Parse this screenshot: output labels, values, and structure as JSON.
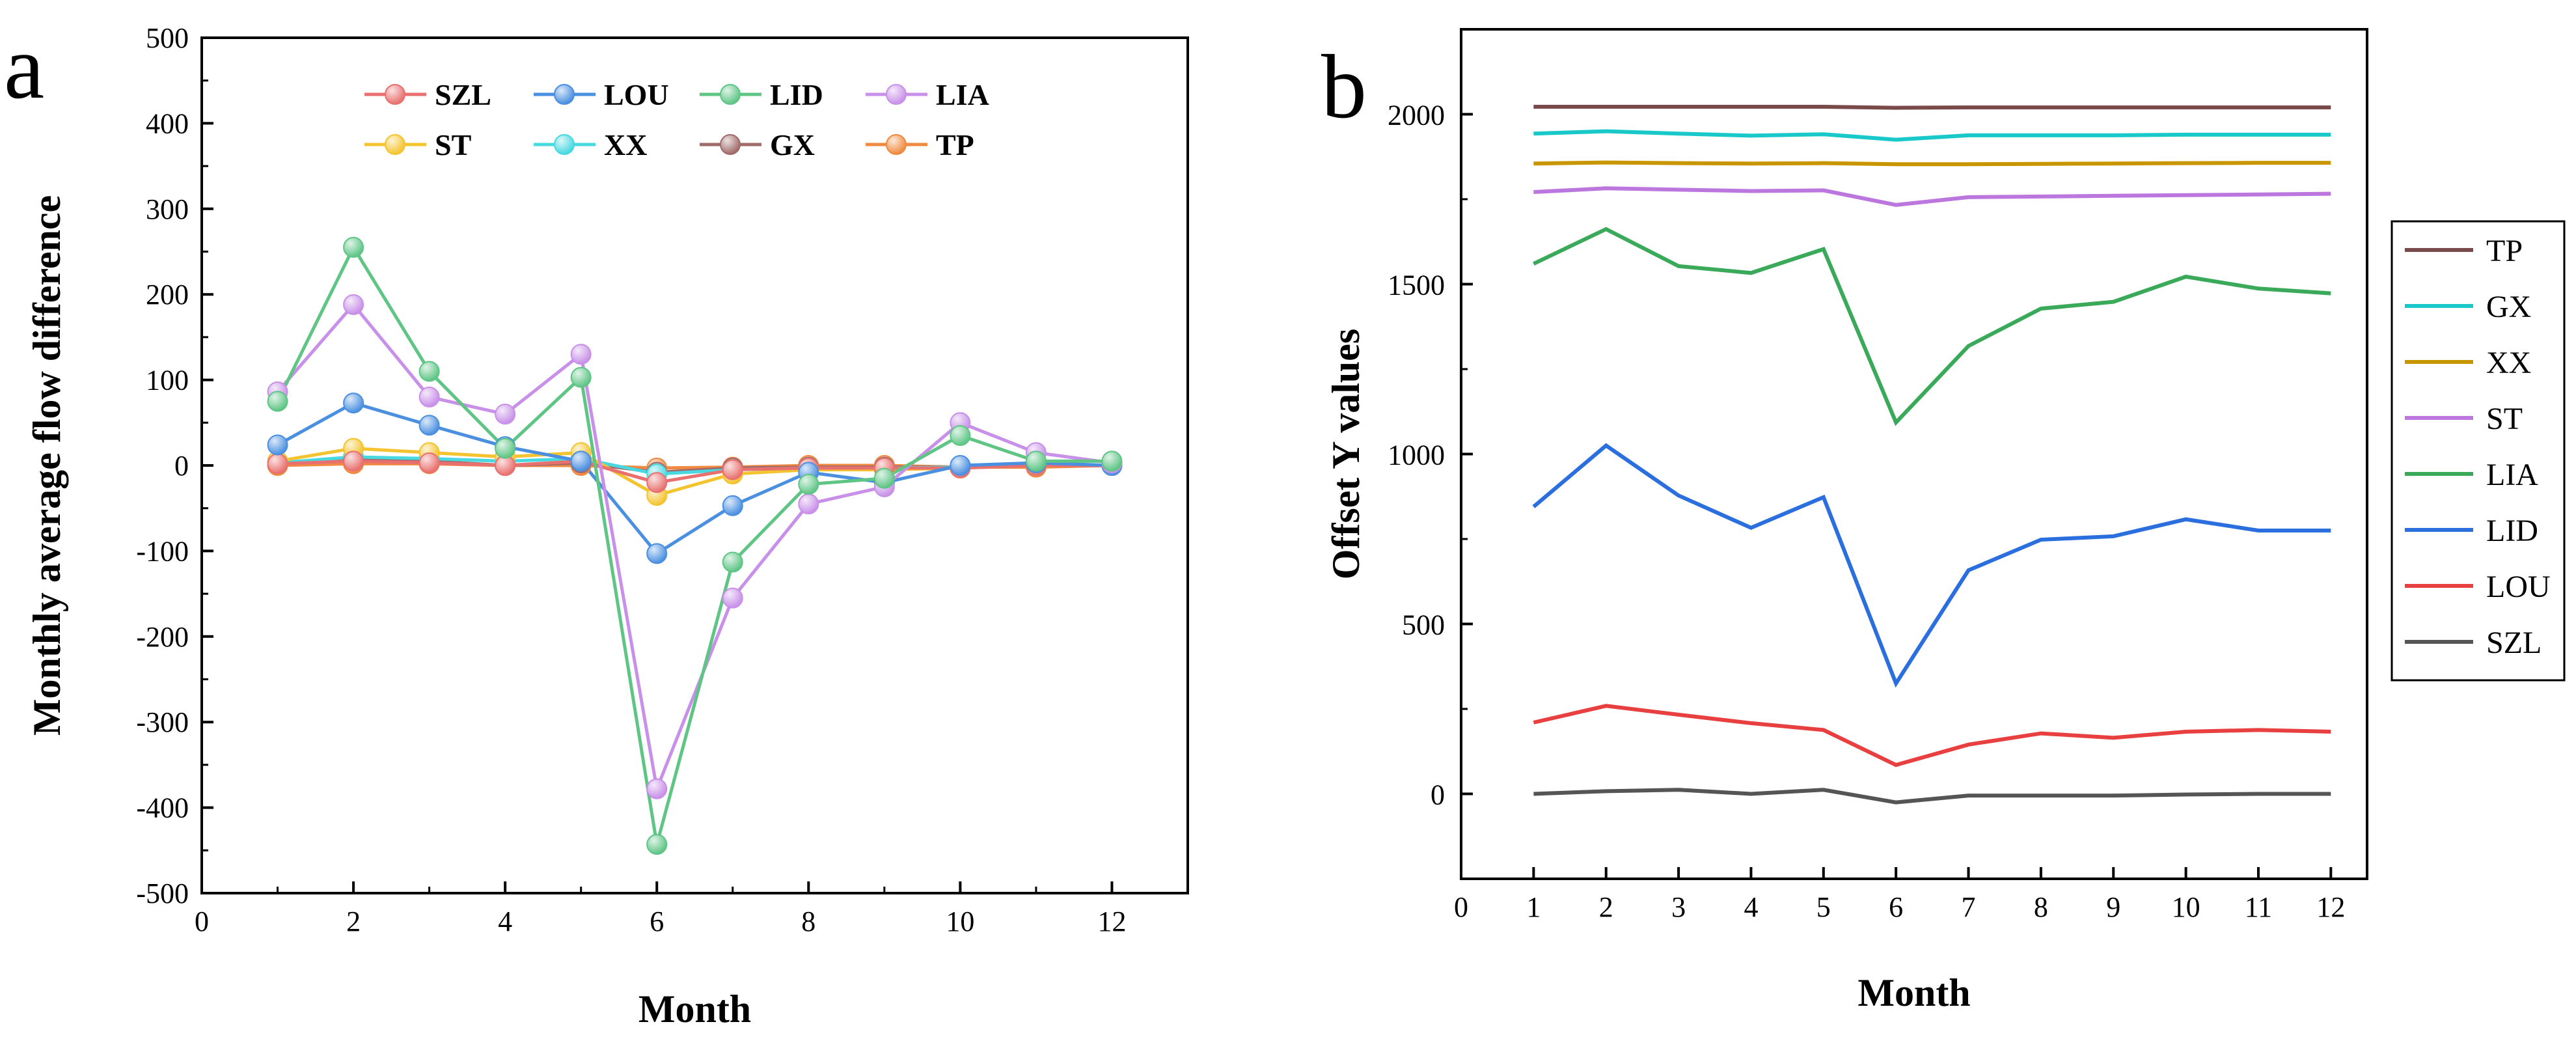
{
  "chart_data": [
    {
      "panel": "a",
      "type": "line",
      "xlabel": "Month",
      "ylabel": "Monthly average flow difference",
      "xlim": [
        0,
        13
      ],
      "ylim": [
        -500,
        500
      ],
      "xticks": [
        0,
        2,
        4,
        6,
        8,
        10,
        12
      ],
      "yticks": [
        -500,
        -400,
        -300,
        -200,
        -100,
        0,
        100,
        200,
        300,
        400,
        500
      ],
      "x": [
        1,
        2,
        3,
        4,
        5,
        6,
        7,
        8,
        9,
        10,
        11,
        12
      ],
      "legend_position": "top",
      "series": [
        {
          "name": "SZL",
          "color": "#e8706e",
          "values": [
            2,
            5,
            3,
            0,
            5,
            -20,
            -5,
            -3,
            -3,
            -3,
            0,
            0
          ]
        },
        {
          "name": "LOU",
          "color": "#4a8fe0",
          "values": [
            24,
            73,
            47,
            22,
            5,
            -103,
            -47,
            -8,
            -20,
            0,
            3,
            0
          ]
        },
        {
          "name": "LID",
          "color": "#5ec585",
          "values": [
            75,
            255,
            110,
            20,
            103,
            -443,
            -113,
            -22,
            -15,
            35,
            5,
            5
          ]
        },
        {
          "name": "LIA",
          "color": "#c890e8",
          "values": [
            86,
            188,
            80,
            60,
            130,
            -378,
            -155,
            -45,
            -25,
            50,
            15,
            3
          ]
        },
        {
          "name": "ST",
          "color": "#f4c430",
          "values": [
            5,
            20,
            15,
            10,
            15,
            -35,
            -10,
            -5,
            -5,
            -3,
            0,
            0
          ]
        },
        {
          "name": "XX",
          "color": "#48d8e0",
          "values": [
            3,
            10,
            8,
            5,
            8,
            -10,
            -5,
            -3,
            -3,
            -2,
            0,
            0
          ]
        },
        {
          "name": "GX",
          "color": "#a06a6a",
          "values": [
            2,
            8,
            5,
            0,
            3,
            -8,
            -3,
            -2,
            -2,
            -2,
            0,
            0
          ]
        },
        {
          "name": "TP",
          "color": "#f08a40",
          "values": [
            0,
            2,
            2,
            0,
            0,
            -3,
            -2,
            0,
            0,
            -2,
            -2,
            0
          ]
        }
      ]
    },
    {
      "panel": "b",
      "type": "line",
      "xlabel": "Month",
      "ylabel": "Offset Y values",
      "xlim": [
        0,
        12.5
      ],
      "ylim": [
        -250,
        2250
      ],
      "xticks": [
        0,
        1,
        2,
        3,
        4,
        5,
        6,
        7,
        8,
        9,
        10,
        11,
        12
      ],
      "yticks": [
        0,
        500,
        1000,
        1500,
        2000
      ],
      "x": [
        1,
        2,
        3,
        4,
        5,
        6,
        7,
        8,
        9,
        10,
        11,
        12
      ],
      "legend_position": "right",
      "series": [
        {
          "name": "TP",
          "color": "#7a4a4a",
          "values": [
            2022,
            2022,
            2022,
            2022,
            2022,
            2019,
            2020,
            2020,
            2020,
            2020,
            2020,
            2020
          ]
        },
        {
          "name": "GX",
          "color": "#19c8c8",
          "values": [
            1943,
            1950,
            1943,
            1937,
            1941,
            1925,
            1938,
            1938,
            1938,
            1940,
            1940,
            1940
          ]
        },
        {
          "name": "XX",
          "color": "#c89600",
          "values": [
            1855,
            1858,
            1856,
            1855,
            1856,
            1853,
            1853,
            1854,
            1855,
            1856,
            1857,
            1857
          ]
        },
        {
          "name": "ST",
          "color": "#bb77dd",
          "values": [
            1771,
            1782,
            1778,
            1774,
            1776,
            1733,
            1756,
            1758,
            1760,
            1762,
            1764,
            1766
          ]
        },
        {
          "name": "LIA",
          "color": "#3aaa5a",
          "values": [
            1560,
            1662,
            1553,
            1533,
            1603,
            1093,
            1318,
            1428,
            1448,
            1522,
            1487,
            1473
          ]
        },
        {
          "name": "LID",
          "color": "#2a6fdd",
          "values": [
            845,
            1025,
            878,
            783,
            873,
            325,
            658,
            748,
            758,
            808,
            775,
            775
          ]
        },
        {
          "name": "LOU",
          "color": "#e84040",
          "values": [
            210,
            259,
            233,
            208,
            188,
            85,
            145,
            178,
            165,
            183,
            188,
            183
          ]
        },
        {
          "name": "SZL",
          "color": "#555555",
          "values": [
            0,
            8,
            12,
            0,
            12,
            -25,
            -5,
            -5,
            -5,
            -2,
            0,
            0
          ]
        }
      ]
    }
  ],
  "panel_labels": [
    "a",
    "b"
  ]
}
